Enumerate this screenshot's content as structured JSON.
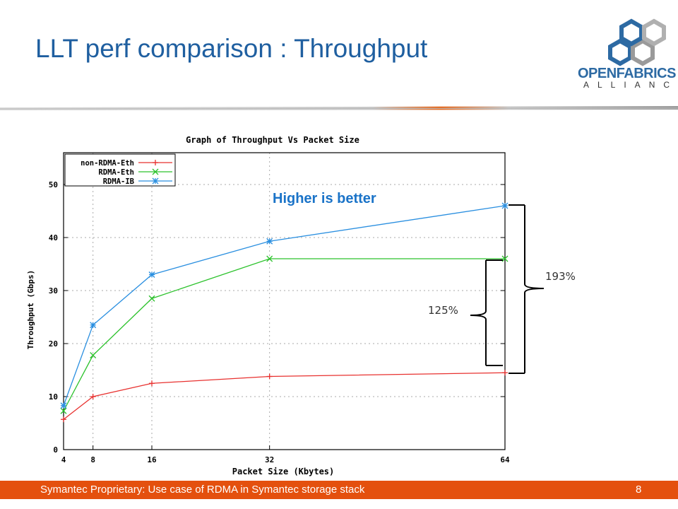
{
  "slide": {
    "title": "LLT perf comparison : Throughput",
    "logo_line1": "OPENFABRICS",
    "logo_line2": "ALLIANCE",
    "footer_text": "Symantec Proprietary: Use case of RDMA in Symantec storage stack",
    "page_number": "8",
    "colors": {
      "title": "#1f5fa0",
      "footer": "#e4500e",
      "accent": "#1a73c8"
    }
  },
  "chart_data": {
    "type": "line",
    "title": "Graph of Throughput Vs Packet Size",
    "xlabel": "Packet Size (Kbytes)",
    "ylabel": "Throughput (Gbps)",
    "x": [
      4,
      8,
      16,
      32,
      64
    ],
    "xticks": [
      "4",
      "8",
      "16",
      "32",
      "64"
    ],
    "yticks": [
      "0",
      "10",
      "20",
      "30",
      "40",
      "50"
    ],
    "xlim": [
      4,
      64
    ],
    "ylim": [
      0,
      56
    ],
    "grid": true,
    "legend_position": "top-left",
    "series": [
      {
        "name": "non-RDMA-Eth",
        "values": [
          5.7,
          10.0,
          12.5,
          13.8,
          14.5
        ],
        "color": "#e8312f",
        "marker": "plus"
      },
      {
        "name": "RDMA-Eth",
        "values": [
          7.3,
          17.8,
          28.5,
          36.0,
          36.0
        ],
        "color": "#2cc22c",
        "marker": "cross"
      },
      {
        "name": "RDMA-IB",
        "values": [
          8.3,
          23.5,
          33.0,
          39.3,
          46.0
        ],
        "color": "#2a8fe0",
        "marker": "star"
      }
    ],
    "annotations": {
      "higher": "Higher is better",
      "pct_small": "125%",
      "pct_large": "193%"
    }
  }
}
